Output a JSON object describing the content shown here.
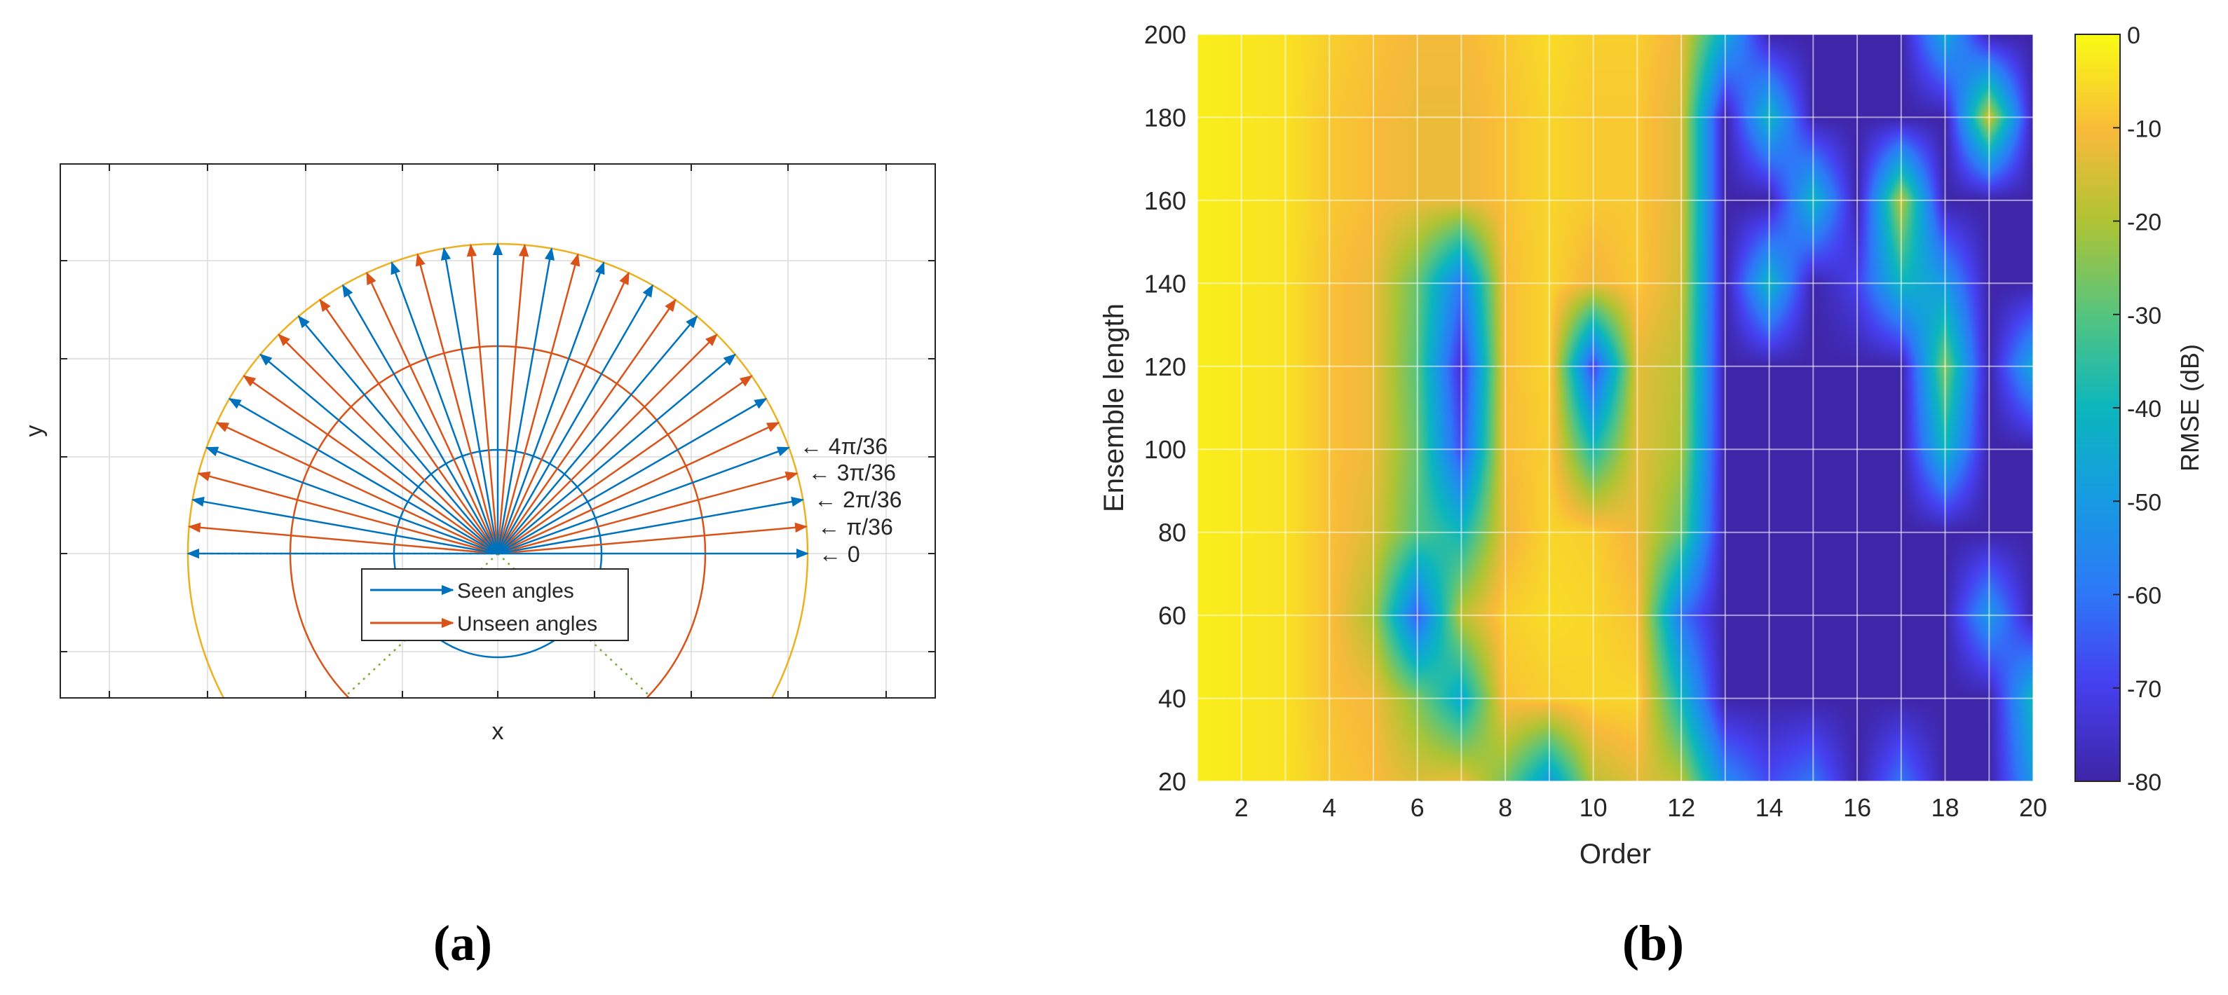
{
  "panels": {
    "a": {
      "label": "(a)"
    },
    "b": {
      "label": "(b)"
    }
  },
  "colors": {
    "seen": "#0072bd",
    "unseen": "#d95319",
    "outer_arc": "#edb120",
    "guide": "#77ac30",
    "grid": "#dcdcdc",
    "axis": "#262626"
  },
  "chart_data": [
    {
      "type": "line",
      "panel": "a",
      "xlabel": "x",
      "ylabel": "y",
      "grid": true,
      "tick_labels_shown": false,
      "ray_spacing_rad": "π/36",
      "ray_range_deg": [
        0,
        180
      ],
      "seen_angles_deg": [
        0,
        10,
        20,
        30,
        40,
        50,
        60,
        70,
        80,
        90,
        100,
        110,
        120,
        130,
        140,
        150,
        160,
        170,
        180
      ],
      "unseen_angles_deg": [
        5,
        15,
        25,
        35,
        45,
        55,
        65,
        75,
        85,
        95,
        105,
        115,
        125,
        135,
        145,
        155,
        165,
        175
      ],
      "angle_annotations": [
        "4π/36",
        "3π/36",
        "2π/36",
        "π/36",
        "0"
      ],
      "legend": {
        "position": "bottom-center",
        "entries": [
          {
            "name": "Seen angles",
            "color": "#0072bd"
          },
          {
            "name": "Unseen angles",
            "color": "#d95319"
          }
        ]
      }
    },
    {
      "type": "heatmap",
      "panel": "b",
      "xlabel": "Order",
      "ylabel": "Ensemble length",
      "colorbar_label": "RMSE (dB)",
      "grid": true,
      "xlim": [
        1,
        20
      ],
      "ylim": [
        20,
        200
      ],
      "clim": [
        -80,
        0
      ],
      "colormap": "parula",
      "x_ticks": [
        2,
        4,
        6,
        8,
        10,
        12,
        14,
        16,
        18,
        20
      ],
      "y_ticks": [
        20,
        40,
        60,
        80,
        100,
        120,
        140,
        160,
        180,
        200
      ],
      "colorbar_ticks": [
        0,
        -10,
        -20,
        -30,
        -40,
        -50,
        -60,
        -70,
        -80
      ],
      "x": [
        1,
        2,
        3,
        4,
        5,
        6,
        7,
        8,
        9,
        10,
        11,
        12,
        13,
        14,
        15,
        16,
        17,
        18,
        19,
        20
      ],
      "y": [
        20,
        40,
        60,
        80,
        100,
        120,
        140,
        160,
        180,
        200
      ],
      "z": [
        [
          -2,
          -3,
          -4,
          -8,
          -10,
          -14,
          -12,
          -26,
          -50,
          -18,
          -13,
          -18,
          -55,
          -68,
          -60,
          -80,
          -60,
          -80,
          -80,
          -50
        ],
        [
          -2,
          -3,
          -4,
          -9,
          -11,
          -25,
          -45,
          -9,
          -7,
          -6,
          -6,
          -40,
          -80,
          -80,
          -80,
          -80,
          -80,
          -80,
          -80,
          -40
        ],
        [
          -2,
          -3,
          -4,
          -9,
          -20,
          -65,
          -18,
          -7,
          -5,
          -6,
          -9,
          -60,
          -80,
          -80,
          -80,
          -80,
          -80,
          -80,
          -50,
          -80
        ],
        [
          -2,
          -3,
          -4,
          -9,
          -14,
          -30,
          -40,
          -12,
          -6,
          -7,
          -12,
          -28,
          -80,
          -80,
          -80,
          -80,
          -80,
          -80,
          -80,
          -80
        ],
        [
          -2,
          -3,
          -4,
          -9,
          -12,
          -28,
          -68,
          -10,
          -7,
          -38,
          -13,
          -20,
          -80,
          -80,
          -80,
          -80,
          -80,
          -40,
          -80,
          -80
        ],
        [
          -2,
          -3,
          -4,
          -9,
          -12,
          -30,
          -75,
          -10,
          -6,
          -70,
          -13,
          -18,
          -80,
          -80,
          -80,
          -80,
          -80,
          -25,
          -80,
          -45
        ],
        [
          -2,
          -3,
          -4,
          -9,
          -12,
          -28,
          -60,
          -10,
          -6,
          -12,
          -8,
          -15,
          -80,
          -40,
          -80,
          -70,
          -40,
          -50,
          -80,
          -80
        ],
        [
          -2,
          -3,
          -4,
          -8,
          -10,
          -12,
          -12,
          -9,
          -6,
          -8,
          -8,
          -14,
          -80,
          -80,
          -40,
          -80,
          -18,
          -80,
          -80,
          -80
        ],
        [
          -2,
          -3,
          -4,
          -8,
          -10,
          -12,
          -12,
          -9,
          -6,
          -8,
          -8,
          -14,
          -80,
          -40,
          -80,
          -80,
          -80,
          -80,
          -15,
          -80
        ],
        [
          -2,
          -3,
          -4,
          -7,
          -9,
          -11,
          -11,
          -8,
          -5,
          -7,
          -7,
          -12,
          -45,
          -80,
          -80,
          -80,
          -80,
          -45,
          -80,
          -80
        ]
      ]
    }
  ]
}
